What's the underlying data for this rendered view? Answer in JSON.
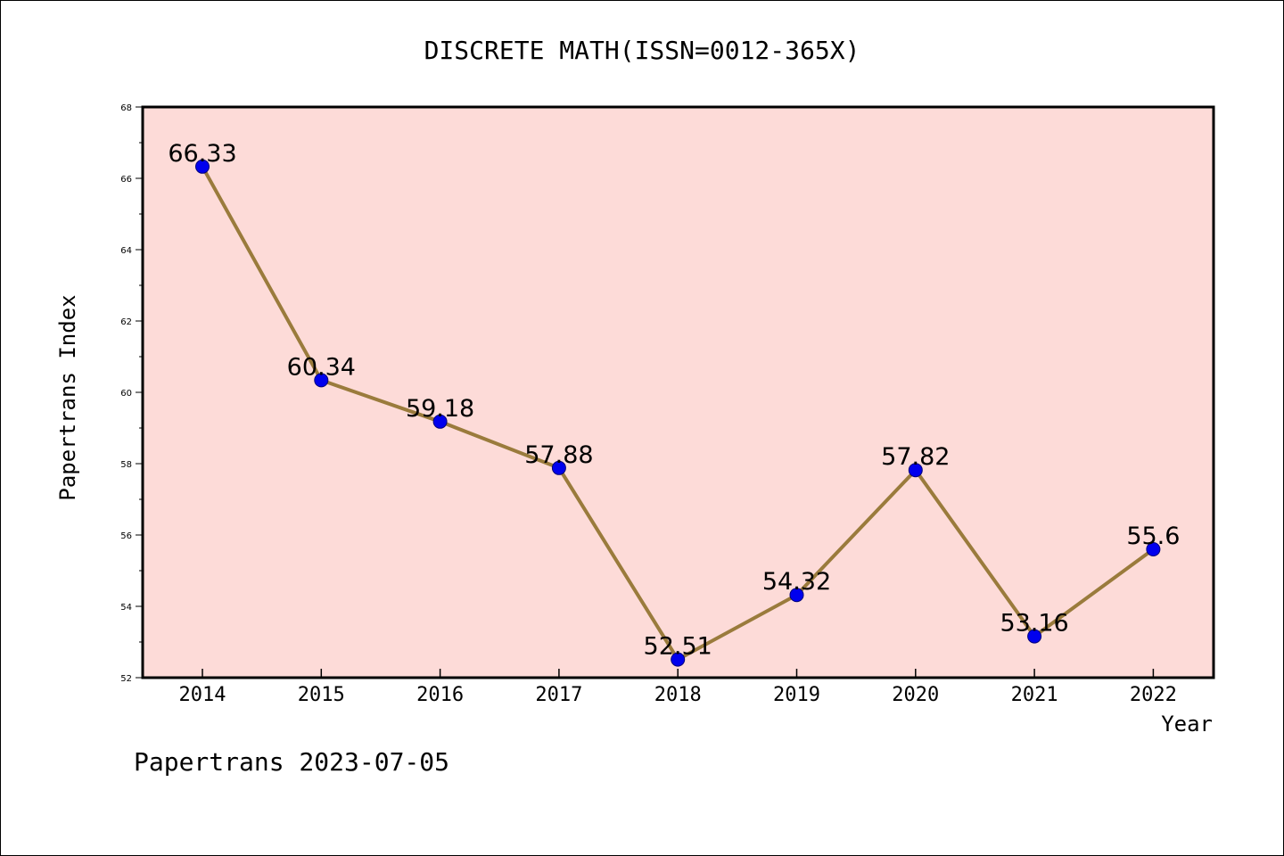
{
  "chart_data": {
    "type": "line",
    "title": "DISCRETE MATH(ISSN=0012-365X)",
    "xlabel": "Year",
    "ylabel": "Papertrans Index",
    "footer": "Papertrans 2023-07-05",
    "categories": [
      "2014",
      "2015",
      "2016",
      "2017",
      "2018",
      "2019",
      "2020",
      "2021",
      "2022"
    ],
    "values": [
      66.33,
      60.34,
      59.18,
      57.88,
      52.51,
      54.32,
      57.82,
      53.16,
      55.6
    ],
    "data_labels": [
      "66.33",
      "60.34",
      "59.18",
      "57.88",
      "52.51",
      "54.32",
      "57.82",
      "53.16",
      "55.6"
    ],
    "ylim": [
      52,
      68
    ],
    "yticks": [
      "52",
      "54",
      "56",
      "58",
      "60",
      "62",
      "64",
      "66",
      "68"
    ],
    "grid": false,
    "legend": "none",
    "colors": {
      "plot_background": "#fddbd8",
      "line": "#9a7b3c",
      "marker": "#0000ee",
      "axis": "#000000"
    }
  }
}
